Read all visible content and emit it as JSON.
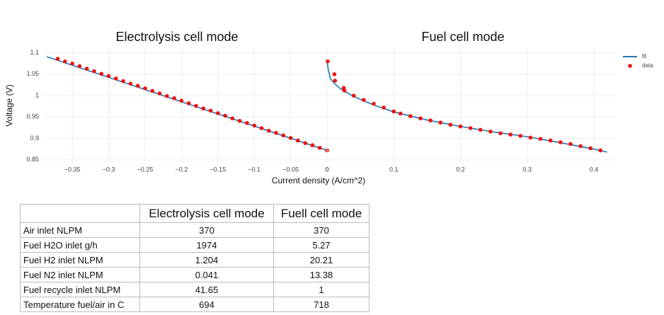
{
  "chart_data": [
    {
      "type": "scatter",
      "title": "Electrolysis cell mode",
      "ylabel": "Voltage (V)",
      "xlim": [
        -0.389,
        0
      ],
      "xticks": [
        {
          "value": -0.35,
          "label": "−0.35"
        },
        {
          "value": -0.3,
          "label": "−0.3"
        },
        {
          "value": -0.25,
          "label": "−0.25"
        },
        {
          "value": -0.2,
          "label": "−0.2"
        },
        {
          "value": -0.15,
          "label": "−0.15"
        },
        {
          "value": -0.1,
          "label": "−0.1"
        },
        {
          "value": -0.05,
          "label": "−0.05"
        },
        0
      ],
      "ylim": [
        0.843,
        1.111
      ],
      "yticks": [
        0.85,
        0.9,
        0.95,
        1,
        1.05,
        1.1
      ],
      "ytick_labels": true,
      "grid": true,
      "series": [
        {
          "mode": "lines",
          "color": "#1f77b4",
          "x": [
            -0.385,
            0
          ],
          "values": [
            1.091,
            0.872
          ]
        },
        {
          "mode": "markers",
          "color": "#ee1111",
          "x": [
            -0.37,
            -0.36,
            -0.35,
            -0.34,
            -0.33,
            -0.32,
            -0.31,
            -0.3,
            -0.29,
            -0.28,
            -0.27,
            -0.26,
            -0.25,
            -0.24,
            -0.23,
            -0.22,
            -0.21,
            -0.2,
            -0.19,
            -0.18,
            -0.17,
            -0.16,
            -0.15,
            -0.14,
            -0.13,
            -0.12,
            -0.11,
            -0.1,
            -0.09,
            -0.08,
            -0.07,
            -0.06,
            -0.05,
            -0.04,
            -0.03,
            -0.02,
            -0.01,
            0
          ],
          "values": [
            1.086,
            1.08,
            1.075,
            1.069,
            1.063,
            1.057,
            1.051,
            1.046,
            1.04,
            1.034,
            1.028,
            1.023,
            1.017,
            1.011,
            1.005,
            0.999,
            0.994,
            0.988,
            0.982,
            0.976,
            0.97,
            0.965,
            0.959,
            0.953,
            0.947,
            0.941,
            0.936,
            0.93,
            0.924,
            0.918,
            0.913,
            0.907,
            0.901,
            0.895,
            0.889,
            0.884,
            0.878,
            0.872
          ]
        }
      ]
    },
    {
      "type": "scatter",
      "title": "Fuel cell mode",
      "xlabel": "Current density (A/cm^2)",
      "xlim": [
        0,
        0.433
      ],
      "xticks": [
        0,
        0.1,
        0.2,
        0.3,
        0.4
      ],
      "ylim": [
        0.843,
        1.111
      ],
      "yticks": [
        0.85,
        0.9,
        0.95,
        1,
        1.05,
        1.1
      ],
      "ytick_labels": false,
      "grid": true,
      "legend": "top-right",
      "series": [
        {
          "name": "fit",
          "mode": "lines",
          "color": "#1f77b4",
          "x": [
            0,
            0.002,
            0.005,
            0.01,
            0.02,
            0.04,
            0.07,
            0.1,
            0.15,
            0.2,
            0.25,
            0.3,
            0.35,
            0.4,
            0.42
          ],
          "values": [
            1.08,
            1.06,
            1.04,
            1.03,
            1.016,
            0.998,
            0.978,
            0.962,
            0.943,
            0.928,
            0.915,
            0.904,
            0.89,
            0.875,
            0.868
          ]
        },
        {
          "name": "data",
          "mode": "markers",
          "color": "#ee1111",
          "x": [
            0.001,
            0.011,
            0.012,
            0.025,
            0.026,
            0.04,
            0.055,
            0.07,
            0.085,
            0.1,
            0.11,
            0.125,
            0.14,
            0.155,
            0.17,
            0.185,
            0.2,
            0.215,
            0.23,
            0.245,
            0.26,
            0.275,
            0.29,
            0.305,
            0.32,
            0.335,
            0.35,
            0.365,
            0.38,
            0.395,
            0.41
          ],
          "values": [
            1.08,
            1.05,
            1.035,
            1.018,
            1.012,
            1.0,
            0.99,
            0.981,
            0.972,
            0.963,
            0.958,
            0.952,
            0.947,
            0.942,
            0.937,
            0.932,
            0.928,
            0.924,
            0.92,
            0.916,
            0.912,
            0.909,
            0.906,
            0.902,
            0.899,
            0.895,
            0.891,
            0.887,
            0.882,
            0.877,
            0.872
          ]
        }
      ]
    }
  ],
  "table": {
    "header": [
      "Electrolysis cell mode",
      "Fuell cell mode"
    ],
    "rows": [
      [
        "Air inlet NLPM",
        370,
        370
      ],
      [
        "Fuel H2O inlet g/h",
        1974,
        5.27
      ],
      [
        "Fuel H2 inlet NLPM",
        1.204,
        20.21
      ],
      [
        "Fuel N2 inlet NLPM",
        0.041,
        13.38
      ],
      [
        "Fuel recycle inlet NLPM",
        41.65,
        1
      ],
      [
        "Temperature fuel/air in C",
        694,
        718
      ]
    ]
  }
}
